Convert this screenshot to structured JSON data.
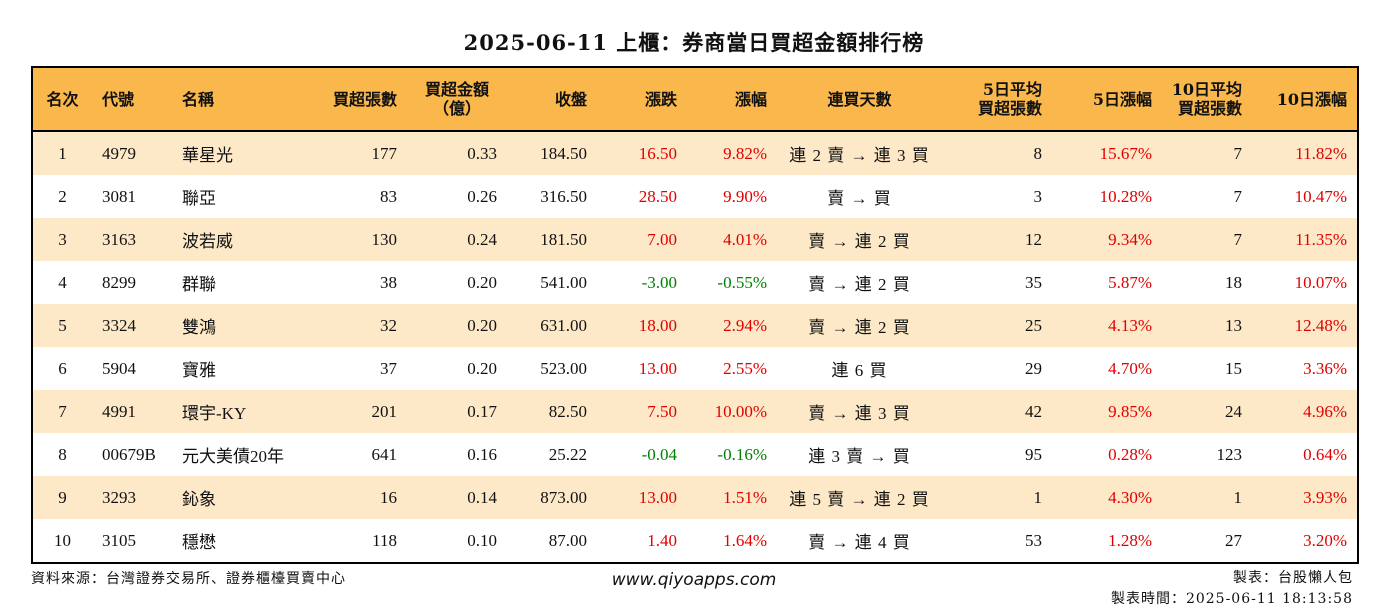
{
  "title": "2025-06-11 上櫃：券商當日買超金額排行榜",
  "headers": {
    "rank": "名次",
    "code": "代號",
    "name": "名稱",
    "buy_lots": "買超張數",
    "buy_amount_1": "買超金額",
    "buy_amount_2": "（億）",
    "close": "收盤",
    "change": "漲跌",
    "pct": "漲幅",
    "streak": "連買天數",
    "avg5_1": "5日平均",
    "avg5_2": "買超張數",
    "pct5": "5日漲幅",
    "avg10_1": "10日平均",
    "avg10_2": "買超張數",
    "pct10": "10日漲幅"
  },
  "rows": [
    {
      "rank": "1",
      "code": "4979",
      "name": "華星光",
      "buy_lots": "177",
      "amount": "0.33",
      "close": "184.50",
      "change": "16.50",
      "pct": "9.82%",
      "streak": "連 2 賣 → 連 3 買",
      "avg5": "8",
      "pct5": "15.67%",
      "avg10": "7",
      "pct10": "11.82%",
      "trend": "up"
    },
    {
      "rank": "2",
      "code": "3081",
      "name": "聯亞",
      "buy_lots": "83",
      "amount": "0.26",
      "close": "316.50",
      "change": "28.50",
      "pct": "9.90%",
      "streak": "賣 → 買",
      "avg5": "3",
      "pct5": "10.28%",
      "avg10": "7",
      "pct10": "10.47%",
      "trend": "up"
    },
    {
      "rank": "3",
      "code": "3163",
      "name": "波若威",
      "buy_lots": "130",
      "amount": "0.24",
      "close": "181.50",
      "change": "7.00",
      "pct": "4.01%",
      "streak": "賣 → 連 2 買",
      "avg5": "12",
      "pct5": "9.34%",
      "avg10": "7",
      "pct10": "11.35%",
      "trend": "up"
    },
    {
      "rank": "4",
      "code": "8299",
      "name": "群聯",
      "buy_lots": "38",
      "amount": "0.20",
      "close": "541.00",
      "change": "-3.00",
      "pct": "-0.55%",
      "streak": "賣 → 連 2 買",
      "avg5": "35",
      "pct5": "5.87%",
      "avg10": "18",
      "pct10": "10.07%",
      "trend": "down"
    },
    {
      "rank": "5",
      "code": "3324",
      "name": "雙鴻",
      "buy_lots": "32",
      "amount": "0.20",
      "close": "631.00",
      "change": "18.00",
      "pct": "2.94%",
      "streak": "賣 → 連 2 買",
      "avg5": "25",
      "pct5": "4.13%",
      "avg10": "13",
      "pct10": "12.48%",
      "trend": "up"
    },
    {
      "rank": "6",
      "code": "5904",
      "name": "寶雅",
      "buy_lots": "37",
      "amount": "0.20",
      "close": "523.00",
      "change": "13.00",
      "pct": "2.55%",
      "streak": "連 6 買",
      "avg5": "29",
      "pct5": "4.70%",
      "avg10": "15",
      "pct10": "3.36%",
      "trend": "up"
    },
    {
      "rank": "7",
      "code": "4991",
      "name": "環宇-KY",
      "buy_lots": "201",
      "amount": "0.17",
      "close": "82.50",
      "change": "7.50",
      "pct": "10.00%",
      "streak": "賣 → 連 3 買",
      "avg5": "42",
      "pct5": "9.85%",
      "avg10": "24",
      "pct10": "4.96%",
      "trend": "up"
    },
    {
      "rank": "8",
      "code": "00679B",
      "name": "元大美債20年",
      "buy_lots": "641",
      "amount": "0.16",
      "close": "25.22",
      "change": "-0.04",
      "pct": "-0.16%",
      "streak": "連 3 賣 → 買",
      "avg5": "95",
      "pct5": "0.28%",
      "avg10": "123",
      "pct10": "0.64%",
      "trend": "down"
    },
    {
      "rank": "9",
      "code": "3293",
      "name": "鈊象",
      "buy_lots": "16",
      "amount": "0.14",
      "close": "873.00",
      "change": "13.00",
      "pct": "1.51%",
      "streak": "連 5 賣 → 連 2 買",
      "avg5": "1",
      "pct5": "4.30%",
      "avg10": "1",
      "pct10": "3.93%",
      "trend": "up"
    },
    {
      "rank": "10",
      "code": "3105",
      "name": "穩懋",
      "buy_lots": "118",
      "amount": "0.10",
      "close": "87.00",
      "change": "1.40",
      "pct": "1.64%",
      "streak": "賣 → 連 4 買",
      "avg5": "53",
      "pct5": "1.28%",
      "avg10": "27",
      "pct10": "3.20%",
      "trend": "up"
    }
  ],
  "colors": {
    "header_bg": "#fab74c",
    "stripe": "#fde9c8",
    "up": "#e00000",
    "down": "#008000"
  },
  "footer": {
    "source": "資料來源：台灣證券交易所、證券櫃檯買賣中心",
    "website": "www.qiyoapps.com",
    "maker": "製表：台股懶人包",
    "time": "製表時間：2025-06-11 18:13:58"
  }
}
